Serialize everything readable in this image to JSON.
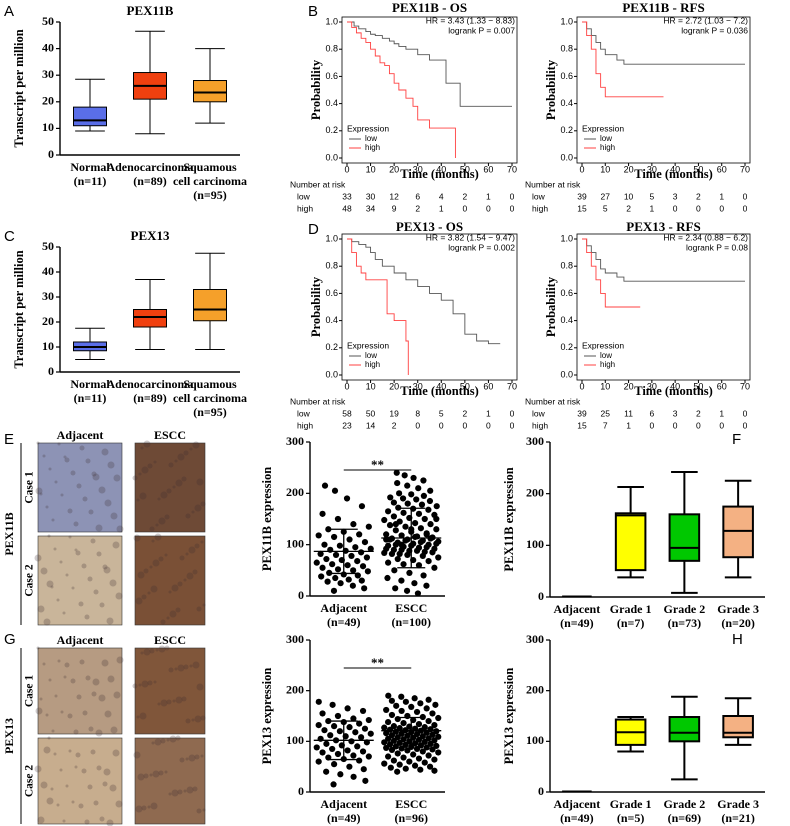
{
  "chart_data": [
    {
      "type": "box",
      "panel": "A",
      "title": "PEX11B",
      "ylabel": "Transcript per million",
      "categories": [
        "Normal\n(n=11)",
        "Adenocarcinoma\n(n=89)",
        "Squamous\ncell carcinoma\n(n=95)"
      ],
      "colors": [
        "#5a6ee8",
        "#f0400f",
        "#f5a02a"
      ],
      "boxes": [
        {
          "low": 9,
          "q1": 11,
          "median": 13,
          "q3": 18,
          "high": 28.5
        },
        {
          "low": 8,
          "q1": 21,
          "median": 26,
          "q3": 31,
          "high": 46.5
        },
        {
          "low": 12,
          "q1": 20,
          "median": 23.5,
          "q3": 28,
          "high": 40
        }
      ],
      "ylim": [
        0,
        50
      ],
      "yticks": [
        0,
        10,
        20,
        30,
        40,
        50
      ]
    },
    {
      "type": "km",
      "panel": "B",
      "title": "PEX11B - OS",
      "xlabel": "Time (months)",
      "ylabel": "Probability",
      "annotations": [
        "HR = 3.43 (1.33 − 8.83)",
        "logrank P = 0.007"
      ],
      "legend_title": "Expression",
      "risk_title": "Number at risk",
      "xlim": [
        0,
        70
      ],
      "xticks": [
        0,
        10,
        20,
        30,
        40,
        50,
        60,
        70
      ],
      "ylim": [
        0,
        1
      ],
      "yticks": [
        {
          "value": 0,
          "label": "0.0"
        },
        0.2,
        0.4,
        0.6,
        0.8,
        {
          "value": 1,
          "label": "1.0"
        }
      ],
      "series": [
        {
          "name": "low",
          "color": "#555555",
          "x": [
            0,
            3,
            5,
            8,
            10,
            12,
            15,
            18,
            20,
            22,
            25,
            30,
            35,
            42,
            48,
            70
          ],
          "values": [
            1,
            0.97,
            0.95,
            0.93,
            0.91,
            0.9,
            0.88,
            0.86,
            0.84,
            0.82,
            0.8,
            0.76,
            0.72,
            0.55,
            0.38,
            0.38
          ],
          "at_risk": [
            33,
            30,
            12,
            6,
            4,
            2,
            1,
            0
          ]
        },
        {
          "name": "high",
          "color": "#ff4040",
          "x": [
            0,
            2,
            4,
            6,
            8,
            10,
            12,
            14,
            16,
            18,
            20,
            22,
            25,
            28,
            30,
            35,
            46
          ],
          "values": [
            1,
            0.96,
            0.92,
            0.88,
            0.85,
            0.8,
            0.75,
            0.7,
            0.68,
            0.62,
            0.55,
            0.5,
            0.44,
            0.38,
            0.28,
            0.22,
            0
          ],
          "at_risk": [
            48,
            34,
            9,
            2,
            1,
            0,
            0,
            0
          ]
        }
      ]
    },
    {
      "type": "km",
      "title": "PEX11B - RFS",
      "xlabel": "Time (months)",
      "ylabel": "Probability",
      "annotations": [
        "HR = 2.72 (1.03 − 7.2)",
        "logrank P = 0.036"
      ],
      "legend_title": "Expression",
      "risk_title": "Number at risk",
      "xlim": [
        0,
        70
      ],
      "xticks": [
        0,
        10,
        20,
        30,
        40,
        50,
        60,
        70
      ],
      "ylim": [
        0,
        1
      ],
      "yticks": [
        {
          "value": 0,
          "label": "0.0"
        },
        0.2,
        0.4,
        0.6,
        0.8,
        {
          "value": 1,
          "label": "1.0"
        }
      ],
      "series": [
        {
          "name": "low",
          "color": "#555555",
          "x": [
            0,
            2,
            4,
            6,
            8,
            10,
            15,
            18,
            70
          ],
          "values": [
            1,
            0.95,
            0.9,
            0.85,
            0.8,
            0.76,
            0.72,
            0.69,
            0.69
          ],
          "at_risk": [
            39,
            27,
            10,
            5,
            3,
            2,
            1,
            0
          ]
        },
        {
          "name": "high",
          "color": "#ff4040",
          "x": [
            0,
            2,
            4,
            6,
            8,
            10,
            35
          ],
          "values": [
            1,
            0.9,
            0.8,
            0.62,
            0.52,
            0.45,
            0.45
          ],
          "at_risk": [
            15,
            5,
            2,
            1,
            0,
            0,
            0,
            0
          ]
        }
      ]
    },
    {
      "type": "box",
      "panel": "C",
      "title": "PEX13",
      "ylabel": "Transcript per million",
      "categories": [
        "Normal\n(n=11)",
        "Adenocarcinoma\n(n=89)",
        "Squamous\ncell carcinoma\n(n=95)"
      ],
      "colors": [
        "#5a6ee8",
        "#f0400f",
        "#f5a02a"
      ],
      "boxes": [
        {
          "low": 5,
          "q1": 8.5,
          "median": 10,
          "q3": 12,
          "high": 17.5
        },
        {
          "low": 9,
          "q1": 18,
          "median": 22,
          "q3": 25,
          "high": 37
        },
        {
          "low": 9,
          "q1": 20.5,
          "median": 25,
          "q3": 33,
          "high": 47.5
        }
      ],
      "ylim": [
        0,
        50
      ],
      "yticks": [
        0,
        10,
        20,
        30,
        40,
        50
      ]
    },
    {
      "type": "km",
      "panel": "D",
      "title": "PEX13 - OS",
      "xlabel": "Time (months)",
      "ylabel": "Probability",
      "annotations": [
        "HR = 3.82 (1.54 − 9.47)",
        "logrank P = 0.002"
      ],
      "legend_title": "Expression",
      "risk_title": "Number at risk",
      "xlim": [
        0,
        70
      ],
      "xticks": [
        0,
        10,
        20,
        30,
        40,
        50,
        60,
        70
      ],
      "ylim": [
        0,
        1
      ],
      "yticks": [
        {
          "value": 0,
          "label": "0.0"
        },
        0.2,
        0.4,
        0.6,
        0.8,
        {
          "value": 1,
          "label": "1.0"
        }
      ],
      "series": [
        {
          "name": "low",
          "color": "#555555",
          "x": [
            0,
            2,
            5,
            8,
            10,
            12,
            15,
            20,
            25,
            30,
            35,
            40,
            45,
            50,
            55,
            60,
            65
          ],
          "values": [
            1,
            0.98,
            0.96,
            0.94,
            0.9,
            0.85,
            0.8,
            0.75,
            0.7,
            0.65,
            0.6,
            0.55,
            0.45,
            0.3,
            0.25,
            0.23,
            0.23
          ],
          "at_risk": [
            58,
            50,
            19,
            8,
            5,
            2,
            1,
            0
          ]
        },
        {
          "name": "high",
          "color": "#ff4040",
          "x": [
            0,
            2,
            4,
            6,
            8,
            15,
            17,
            20,
            25,
            26
          ],
          "values": [
            1,
            0.9,
            0.8,
            0.75,
            0.7,
            0.7,
            0.45,
            0.4,
            0.25,
            0
          ],
          "at_risk": [
            23,
            14,
            2,
            0,
            0,
            0,
            0,
            0
          ]
        }
      ]
    },
    {
      "type": "km",
      "title": "PEX13 - RFS",
      "xlabel": "Time (months)",
      "ylabel": "Probability",
      "annotations": [
        "HR = 2.34 (0.88 − 6.2)",
        "logrank P = 0.08"
      ],
      "legend_title": "Expression",
      "risk_title": "Number at risk",
      "xlim": [
        0,
        70
      ],
      "xticks": [
        0,
        10,
        20,
        30,
        40,
        50,
        60,
        70
      ],
      "ylim": [
        0,
        1
      ],
      "yticks": [
        {
          "value": 0,
          "label": "0.0"
        },
        0.2,
        0.4,
        0.6,
        0.8,
        {
          "value": 1,
          "label": "1.0"
        }
      ],
      "series": [
        {
          "name": "low",
          "color": "#555555",
          "x": [
            0,
            2,
            4,
            6,
            8,
            10,
            15,
            18,
            70
          ],
          "values": [
            1,
            0.95,
            0.9,
            0.85,
            0.78,
            0.75,
            0.72,
            0.69,
            0.69
          ],
          "at_risk": [
            39,
            25,
            11,
            6,
            3,
            2,
            1,
            0
          ]
        },
        {
          "name": "high",
          "color": "#ff4040",
          "x": [
            0,
            2,
            4,
            6,
            8,
            10,
            25
          ],
          "values": [
            1,
            0.9,
            0.8,
            0.7,
            0.6,
            0.5,
            0.5
          ],
          "at_risk": [
            15,
            7,
            1,
            0,
            0,
            0,
            0,
            0
          ]
        }
      ]
    },
    {
      "type": "dotplot",
      "panel": "E",
      "ylabel": "PEX11B expression",
      "significance": "**",
      "image_columns": [
        "Adjacent",
        "ESCC"
      ],
      "image_rows": [
        "Case 1",
        "Case 2"
      ],
      "image_group": "PEX11B",
      "categories": [
        "Adjacent\n(n=49)",
        "ESCC\n(n=100)"
      ],
      "ylim": [
        0,
        300
      ],
      "yticks": [
        0,
        100,
        200,
        300
      ],
      "means": [
        87,
        113
      ],
      "sd": [
        43,
        58
      ],
      "groups": [
        [
          215,
          205,
          190,
          175,
          160,
          150,
          140,
          135,
          130,
          125,
          120,
          118,
          115,
          110,
          105,
          100,
          98,
          95,
          92,
          90,
          88,
          85,
          82,
          80,
          78,
          75,
          72,
          70,
          68,
          65,
          62,
          60,
          58,
          55,
          52,
          50,
          48,
          45,
          42,
          40,
          38,
          35,
          32,
          30,
          28,
          25,
          20,
          15,
          10
        ],
        [
          240,
          235,
          230,
          225,
          220,
          215,
          210,
          205,
          200,
          198,
          195,
          192,
          190,
          188,
          185,
          182,
          180,
          178,
          175,
          172,
          170,
          168,
          165,
          162,
          160,
          158,
          155,
          152,
          150,
          148,
          145,
          142,
          140,
          138,
          135,
          132,
          130,
          128,
          125,
          122,
          120,
          118,
          116,
          114,
          112,
          110,
          108,
          106,
          104,
          102,
          100,
          98,
          96,
          94,
          92,
          90,
          88,
          86,
          84,
          82,
          115,
          112,
          110,
          108,
          105,
          102,
          100,
          98,
          95,
          92,
          90,
          88,
          85,
          82,
          80,
          78,
          75,
          72,
          70,
          68,
          65,
          62,
          60,
          55,
          50,
          45,
          40,
          35,
          30,
          25,
          20,
          15,
          10,
          5,
          150,
          140,
          130,
          120,
          110,
          100
        ]
      ]
    },
    {
      "type": "box",
      "panel": "F",
      "ylabel": "PEX11B expression",
      "categories": [
        "Adjacent\n(n=49)",
        "Grade 1\n(n=7)",
        "Grade 2\n(n=73)",
        "Grade 3\n(n=20)"
      ],
      "colors": [
        "#ffffff",
        "#ffff00",
        "#00c800",
        "#f4b183"
      ],
      "boxes": [
        {
          "low": 1,
          "q1": 1,
          "median": 1,
          "q3": 1,
          "high": 1
        },
        {
          "low": 38,
          "q1": 52,
          "median": 158,
          "q3": 162,
          "high": 213
        },
        {
          "low": 8,
          "q1": 70,
          "median": 95,
          "q3": 160,
          "high": 242
        },
        {
          "low": 38,
          "q1": 77,
          "median": 128,
          "q3": 175,
          "high": 225
        }
      ],
      "ylim": [
        0,
        300
      ],
      "yticks": [
        0,
        100,
        200,
        300
      ]
    },
    {
      "type": "dotplot",
      "panel": "G",
      "ylabel": "PEX13 expression",
      "significance": "**",
      "image_columns": [
        "Adjacent",
        "ESCC"
      ],
      "image_rows": [
        "Case 1",
        "Case 2"
      ],
      "image_group": "PEX13",
      "categories": [
        "Adjacent\n(n=49)",
        "ESCC\n(n=96)"
      ],
      "ylim": [
        0,
        300
      ],
      "yticks": [
        0,
        100,
        200,
        300
      ],
      "means": [
        102,
        121
      ],
      "sd": [
        38,
        26
      ],
      "groups": [
        [
          178,
          172,
          165,
          160,
          155,
          150,
          145,
          142,
          140,
          138,
          135,
          132,
          130,
          128,
          125,
          122,
          120,
          118,
          115,
          112,
          110,
          108,
          105,
          102,
          100,
          98,
          95,
          92,
          90,
          88,
          85,
          82,
          80,
          78,
          75,
          72,
          70,
          68,
          65,
          62,
          60,
          55,
          50,
          45,
          40,
          35,
          30,
          22,
          15
        ],
        [
          190,
          188,
          185,
          182,
          180,
          178,
          175,
          172,
          170,
          168,
          165,
          162,
          160,
          158,
          155,
          152,
          150,
          148,
          146,
          144,
          142,
          140,
          138,
          136,
          134,
          132,
          130,
          129,
          128,
          127,
          126,
          125,
          124,
          123,
          122,
          121,
          120,
          119,
          118,
          117,
          116,
          115,
          114,
          113,
          112,
          111,
          110,
          109,
          108,
          107,
          106,
          105,
          104,
          103,
          102,
          101,
          100,
          99,
          98,
          97,
          96,
          95,
          94,
          93,
          92,
          91,
          90,
          89,
          88,
          87,
          86,
          85,
          84,
          83,
          82,
          80,
          78,
          76,
          74,
          72,
          70,
          68,
          66,
          64,
          62,
          60,
          58,
          56,
          54,
          52,
          50,
          48,
          46,
          44,
          42,
          40
        ]
      ]
    },
    {
      "type": "box",
      "panel": "H",
      "ylabel": "PEX13 expression",
      "categories": [
        "Adjacent\n(n=49)",
        "Grade 1\n(n=5)",
        "Grade 2\n(n=69)",
        "Grade 3\n(n=21)"
      ],
      "colors": [
        "#ffffff",
        "#ffff00",
        "#00c800",
        "#f4b183"
      ],
      "boxes": [
        {
          "low": 1,
          "q1": 1,
          "median": 1,
          "q3": 1,
          "high": 1
        },
        {
          "low": 80,
          "q1": 93,
          "median": 118,
          "q3": 143,
          "high": 148
        },
        {
          "low": 25,
          "q1": 100,
          "median": 117,
          "q3": 148,
          "high": 188
        },
        {
          "low": 93,
          "q1": 108,
          "median": 117,
          "q3": 150,
          "high": 185
        }
      ],
      "ylim": [
        0,
        300
      ],
      "yticks": [
        0,
        100,
        200,
        300
      ]
    }
  ]
}
